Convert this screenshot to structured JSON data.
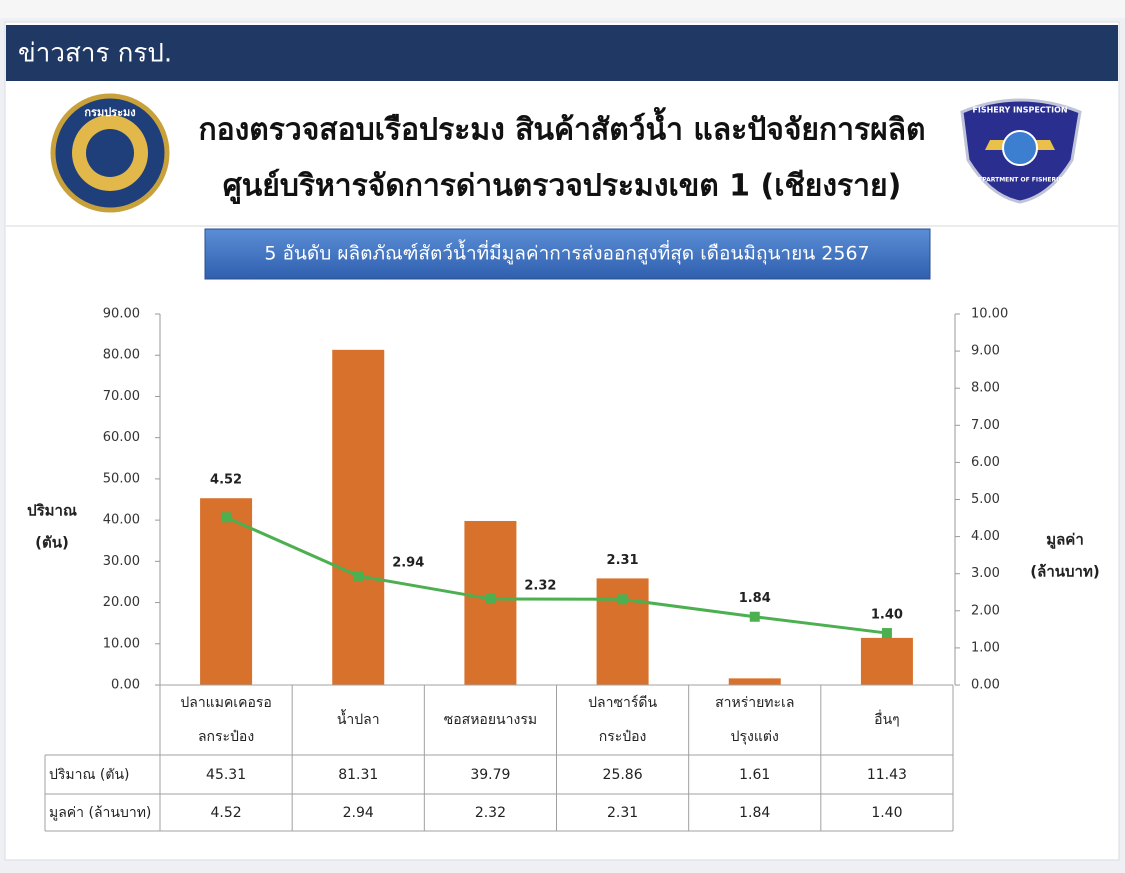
{
  "header": {
    "title": "ข่าวสาร กรป."
  },
  "logos": {
    "left": "กรมประมง",
    "right_top": "FISHERY INSPECTION",
    "right_bottom": "DEPARTMENT OF FISHERIES"
  },
  "chart_data": {
    "type": "bar",
    "title": "กองตรวจสอบเรือประมง สินค้าสัตว์น้ำ และปัจจัยการผลิต",
    "subtitle": "ศูนย์บริหารจัดการด่านตรวจประมงเขต 1 (เชียงราย)",
    "caption": "5 อันดับ ผลิตภัณฑ์สัตว์น้ำที่มีมูลค่าการส่งออกสูงที่สุด เดือนมิถุนายน 2567",
    "ylabel": [
      "ปริมาณ",
      "(ตัน)"
    ],
    "y2label": [
      "มูลค่า",
      "(ล้านบาท)"
    ],
    "categories": [
      "ปลาแมคเคอรอ\nลกระป๋อง",
      "น้ำปลา",
      "ซอสหอยนางรม",
      "ปลาซาร์ดีน\nกระป๋อง",
      "สาหร่ายทะเล\nปรุงแต่ง",
      "อื่นๆ"
    ],
    "series": [
      {
        "name": "ปริมาณ (ตัน)",
        "type": "bar",
        "color": "#d8712b",
        "values": [
          45.31,
          81.31,
          39.79,
          25.86,
          1.61,
          11.43
        ]
      },
      {
        "name": "มูลค่า (ล้านบาท)",
        "type": "line",
        "axis": "y2",
        "color": "#4caf50",
        "values": [
          4.52,
          2.94,
          2.32,
          2.31,
          1.84,
          1.4
        ],
        "value_labels": [
          "4.52",
          "2.94",
          "2.32",
          "2.31",
          "1.84",
          "1.40"
        ]
      }
    ],
    "ylim": [
      0,
      90
    ],
    "yticks": [
      {
        "value": 0,
        "label": "0.00"
      },
      {
        "value": 10,
        "label": "10.00"
      },
      {
        "value": 20,
        "label": "20.00"
      },
      {
        "value": 30,
        "label": "30.00"
      },
      {
        "value": 40,
        "label": "40.00"
      },
      {
        "value": 50,
        "label": "50.00"
      },
      {
        "value": 60,
        "label": "60.00"
      },
      {
        "value": 70,
        "label": "70.00"
      },
      {
        "value": 80,
        "label": "80.00"
      },
      {
        "value": 90,
        "label": "90.00"
      }
    ],
    "y2lim": [
      0,
      10
    ],
    "y2ticks": [
      {
        "value": 0,
        "label": "0.00"
      },
      {
        "value": 1,
        "label": "1.00"
      },
      {
        "value": 2,
        "label": "2.00"
      },
      {
        "value": 3,
        "label": "3.00"
      },
      {
        "value": 4,
        "label": "4.00"
      },
      {
        "value": 5,
        "label": "5.00"
      },
      {
        "value": 6,
        "label": "6.00"
      },
      {
        "value": 7,
        "label": "7.00"
      },
      {
        "value": 8,
        "label": "8.00"
      },
      {
        "value": 9,
        "label": "9.00"
      },
      {
        "value": 10,
        "label": "10.00"
      }
    ],
    "grid": false
  }
}
